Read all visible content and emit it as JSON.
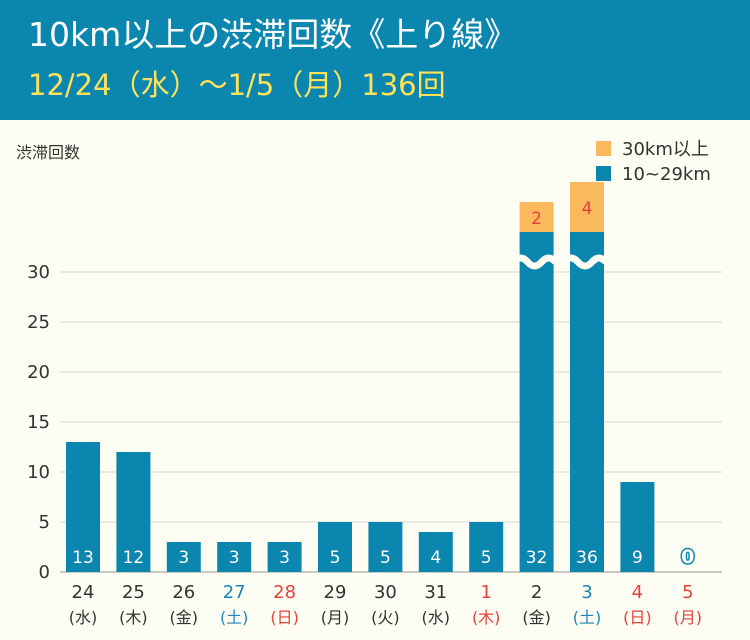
{
  "header": {
    "title": "10km以上の渋滞回数《上り線》",
    "subtitle": "12/24（水）～1/5（月）136回"
  },
  "colors": {
    "header_bg": "#0b86ae",
    "title": "#ffffff",
    "subtitle": "#ffe25a",
    "bar_blue": "#0b86ae",
    "bar_orange": "#fbb95d",
    "saturday": "#1a86b8",
    "holiday": "#e4413b",
    "weekday": "#333333",
    "grid": "#d9d9d9",
    "background": "#fdfdf3"
  },
  "chart_data": {
    "type": "bar",
    "stacked": true,
    "ylabel": "渋滞回数",
    "ylim": [
      0,
      30
    ],
    "yticks": [
      0,
      5,
      10,
      15,
      20,
      25,
      30
    ],
    "axis_break": true,
    "legend_position": "top-right",
    "legend": [
      {
        "name": "30km以上",
        "color": "#fbb95d"
      },
      {
        "name": "10~29km",
        "color": "#0b86ae"
      }
    ],
    "categories": [
      {
        "day": "24",
        "weekday": "(水)",
        "kind": "weekday"
      },
      {
        "day": "25",
        "weekday": "(木)",
        "kind": "weekday"
      },
      {
        "day": "26",
        "weekday": "(金)",
        "kind": "weekday"
      },
      {
        "day": "27",
        "weekday": "(土)",
        "kind": "saturday"
      },
      {
        "day": "28",
        "weekday": "(日)",
        "kind": "holiday"
      },
      {
        "day": "29",
        "weekday": "(月)",
        "kind": "weekday"
      },
      {
        "day": "30",
        "weekday": "(火)",
        "kind": "weekday"
      },
      {
        "day": "31",
        "weekday": "(水)",
        "kind": "weekday"
      },
      {
        "day": "1",
        "weekday": "(木)",
        "kind": "holiday"
      },
      {
        "day": "2",
        "weekday": "(金)",
        "kind": "weekday"
      },
      {
        "day": "3",
        "weekday": "(土)",
        "kind": "saturday"
      },
      {
        "day": "4",
        "weekday": "(日)",
        "kind": "holiday"
      },
      {
        "day": "5",
        "weekday": "(月)",
        "kind": "holiday"
      }
    ],
    "series": [
      {
        "name": "10~29km",
        "values": [
          13,
          12,
          3,
          3,
          3,
          5,
          5,
          4,
          5,
          32,
          36,
          9,
          0
        ]
      },
      {
        "name": "30km以上",
        "values": [
          0,
          0,
          0,
          0,
          0,
          0,
          0,
          0,
          0,
          2,
          4,
          0,
          0
        ]
      }
    ]
  }
}
